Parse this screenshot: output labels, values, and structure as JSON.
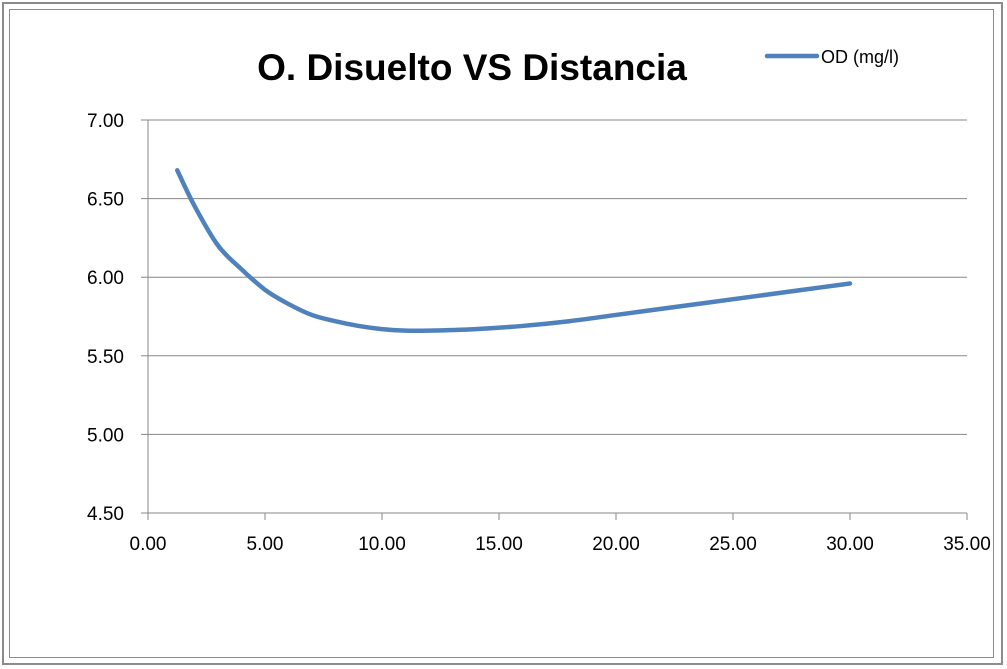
{
  "chart_data": {
    "type": "line",
    "title": "O. Disuelto VS Distancia",
    "xlabel": "",
    "ylabel": "",
    "xlim": [
      0,
      35
    ],
    "ylim": [
      4.5,
      7.0
    ],
    "x_ticks": [
      "0.00",
      "5.00",
      "10.00",
      "15.00",
      "20.00",
      "25.00",
      "30.00",
      "35.00"
    ],
    "y_ticks": [
      "4.50",
      "5.00",
      "5.50",
      "6.00",
      "6.50",
      "7.00"
    ],
    "grid": "horizontal",
    "legend_position": "top-right",
    "series": [
      {
        "name": "OD (mg/l)",
        "color": "#4f81bd",
        "x": [
          1.25,
          2.0,
          3.0,
          4.0,
          5.0,
          6.0,
          7.0,
          8.0,
          9.0,
          10.0,
          11.0,
          12.0,
          14.0,
          16.0,
          18.0,
          20.0,
          22.0,
          24.0,
          26.0,
          28.0,
          30.0
        ],
        "y": [
          6.68,
          6.45,
          6.2,
          6.05,
          5.92,
          5.83,
          5.76,
          5.72,
          5.69,
          5.67,
          5.66,
          5.66,
          5.67,
          5.69,
          5.72,
          5.76,
          5.8,
          5.84,
          5.88,
          5.92,
          5.96
        ]
      }
    ]
  }
}
